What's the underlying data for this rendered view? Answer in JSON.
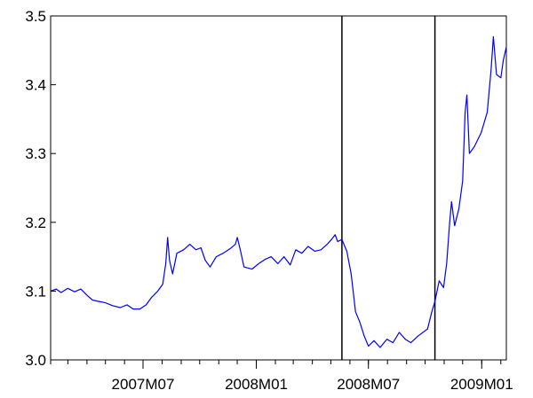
{
  "colors": {
    "series_line": "#0000ff",
    "axes": "#000000",
    "vertical_lines": "#000000",
    "background": "#ffffff"
  },
  "chart_data": {
    "type": "line",
    "title": "",
    "xlabel": "",
    "ylabel": "",
    "ylim": [
      3.0,
      3.5
    ],
    "grid": false,
    "legend": "none",
    "y_ticks": [
      "3.0",
      "3.1",
      "3.2",
      "3.3",
      "3.4",
      "3.5"
    ],
    "x_ticks": [
      "2007M07",
      "2008M01",
      "2008M07",
      "2009M01"
    ],
    "x_range": [
      "2007-02-01",
      "2009-02-10"
    ],
    "vertical_lines": [
      "2008-05-19",
      "2008-10-17"
    ],
    "series": [
      {
        "name": "",
        "color": "#0000ff",
        "points": [
          [
            "2007-02-01",
            3.1
          ],
          [
            "2007-02-10",
            3.103
          ],
          [
            "2007-02-18",
            3.098
          ],
          [
            "2007-03-01",
            3.104
          ],
          [
            "2007-03-12",
            3.099
          ],
          [
            "2007-03-22",
            3.103
          ],
          [
            "2007-04-01",
            3.094
          ],
          [
            "2007-04-10",
            3.087
          ],
          [
            "2007-04-20",
            3.085
          ],
          [
            "2007-05-01",
            3.083
          ],
          [
            "2007-05-12",
            3.079
          ],
          [
            "2007-05-25",
            3.076
          ],
          [
            "2007-06-05",
            3.08
          ],
          [
            "2007-06-15",
            3.074
          ],
          [
            "2007-06-26",
            3.074
          ],
          [
            "2007-07-06",
            3.08
          ],
          [
            "2007-07-15",
            3.091
          ],
          [
            "2007-07-25",
            3.1
          ],
          [
            "2007-08-02",
            3.11
          ],
          [
            "2007-08-07",
            3.14
          ],
          [
            "2007-08-10",
            3.178
          ],
          [
            "2007-08-13",
            3.145
          ],
          [
            "2007-08-18",
            3.125
          ],
          [
            "2007-08-25",
            3.155
          ],
          [
            "2007-09-05",
            3.16
          ],
          [
            "2007-09-15",
            3.168
          ],
          [
            "2007-09-25",
            3.16
          ],
          [
            "2007-10-03",
            3.163
          ],
          [
            "2007-10-10",
            3.145
          ],
          [
            "2007-10-18",
            3.135
          ],
          [
            "2007-10-28",
            3.15
          ],
          [
            "2007-11-08",
            3.155
          ],
          [
            "2007-11-20",
            3.162
          ],
          [
            "2007-11-28",
            3.168
          ],
          [
            "2007-12-01",
            3.178
          ],
          [
            "2007-12-06",
            3.16
          ],
          [
            "2007-12-12",
            3.135
          ],
          [
            "2007-12-25",
            3.132
          ],
          [
            "2008-01-05",
            3.14
          ],
          [
            "2008-01-15",
            3.146
          ],
          [
            "2008-01-25",
            3.15
          ],
          [
            "2008-02-05",
            3.14
          ],
          [
            "2008-02-15",
            3.15
          ],
          [
            "2008-02-25",
            3.138
          ],
          [
            "2008-03-05",
            3.16
          ],
          [
            "2008-03-15",
            3.155
          ],
          [
            "2008-03-25",
            3.165
          ],
          [
            "2008-04-05",
            3.158
          ],
          [
            "2008-04-15",
            3.16
          ],
          [
            "2008-04-25",
            3.168
          ],
          [
            "2008-05-02",
            3.175
          ],
          [
            "2008-05-08",
            3.182
          ],
          [
            "2008-05-12",
            3.172
          ],
          [
            "2008-05-19",
            3.175
          ],
          [
            "2008-05-27",
            3.158
          ],
          [
            "2008-06-03",
            3.125
          ],
          [
            "2008-06-10",
            3.07
          ],
          [
            "2008-06-17",
            3.055
          ],
          [
            "2008-06-24",
            3.035
          ],
          [
            "2008-07-01",
            3.02
          ],
          [
            "2008-07-10",
            3.028
          ],
          [
            "2008-07-20",
            3.018
          ],
          [
            "2008-07-31",
            3.03
          ],
          [
            "2008-08-10",
            3.025
          ],
          [
            "2008-08-20",
            3.04
          ],
          [
            "2008-08-30",
            3.03
          ],
          [
            "2008-09-08",
            3.025
          ],
          [
            "2008-09-20",
            3.035
          ],
          [
            "2008-10-05",
            3.045
          ],
          [
            "2008-10-12",
            3.07
          ],
          [
            "2008-10-17",
            3.085
          ],
          [
            "2008-10-24",
            3.115
          ],
          [
            "2008-10-31",
            3.105
          ],
          [
            "2008-11-05",
            3.14
          ],
          [
            "2008-11-10",
            3.2
          ],
          [
            "2008-11-13",
            3.23
          ],
          [
            "2008-11-18",
            3.195
          ],
          [
            "2008-11-25",
            3.22
          ],
          [
            "2008-12-01",
            3.26
          ],
          [
            "2008-12-05",
            3.36
          ],
          [
            "2008-12-08",
            3.385
          ],
          [
            "2008-12-12",
            3.3
          ],
          [
            "2008-12-20",
            3.31
          ],
          [
            "2008-12-31",
            3.33
          ],
          [
            "2009-01-10",
            3.36
          ],
          [
            "2009-01-16",
            3.42
          ],
          [
            "2009-01-20",
            3.47
          ],
          [
            "2009-01-25",
            3.415
          ],
          [
            "2009-02-01",
            3.41
          ],
          [
            "2009-02-05",
            3.435
          ],
          [
            "2009-02-10",
            3.455
          ]
        ]
      }
    ]
  }
}
